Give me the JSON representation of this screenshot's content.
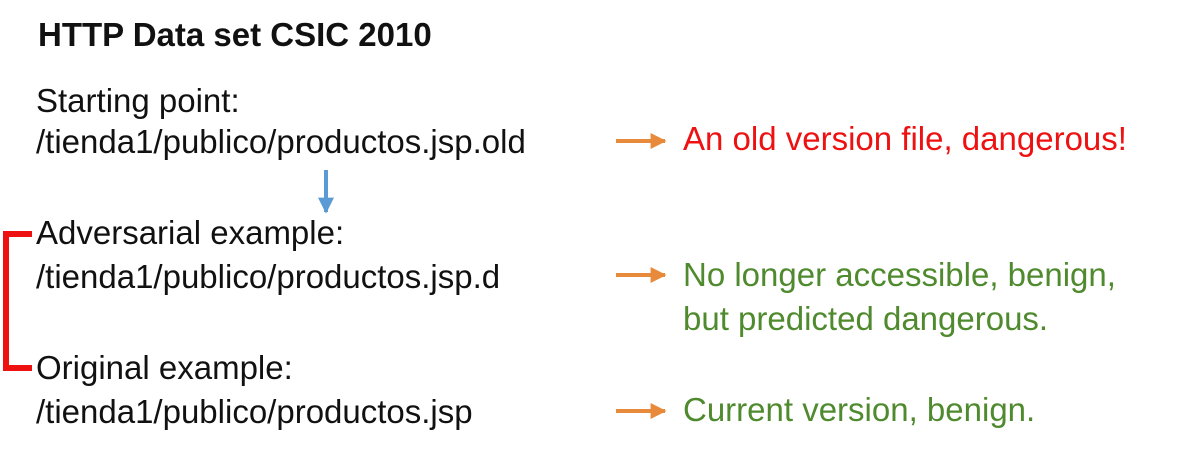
{
  "title": "HTTP Data set CSIC 2010",
  "rows": [
    {
      "label": "Starting point:",
      "path": "/tienda1/publico/productos.jsp.old",
      "note": [
        "An old version file, dangerous!"
      ]
    },
    {
      "label": "Adversarial example:",
      "path": "/tienda1/publico/productos.jsp.d",
      "note": [
        "No longer accessible, benign,",
        "but predicted dangerous."
      ]
    },
    {
      "label": "Original example:",
      "path": "/tienda1/publico/productos.jsp",
      "note": [
        "Current version, benign."
      ]
    }
  ],
  "colors": {
    "text": "#111111",
    "danger": "#ee1111",
    "benign": "#4f8a2e",
    "arrow_orange": "#e88a3c",
    "arrow_blue": "#5b9bd5",
    "bracket_red": "#ee1111"
  }
}
